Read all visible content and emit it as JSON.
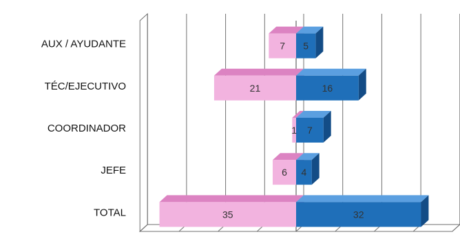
{
  "chart_data": {
    "type": "bar",
    "orientation": "horizontal",
    "style": "3d-population-pyramid",
    "categories": [
      "AUX / AYUDANTE",
      "TÉC/EJECUTIVO",
      "COORDINADOR",
      "JEFE",
      "TOTAL"
    ],
    "series": [
      {
        "values": [
          7,
          21,
          1,
          6,
          35
        ],
        "direction": "left",
        "color": "#f2b3df"
      },
      {
        "values": [
          5,
          16,
          7,
          4,
          32
        ],
        "direction": "right",
        "color": "#1f6fb9"
      }
    ],
    "xlim": [
      -40,
      40
    ],
    "grid": true,
    "legend": "none"
  },
  "colors": {
    "left_front": "#f2b3df",
    "left_top": "#dc83c2",
    "left_side": "#c36aa9",
    "right_front": "#1f6fb9",
    "right_top": "#5b9fe0",
    "right_side": "#134c86",
    "grid": "#707070",
    "text": "#111111"
  }
}
